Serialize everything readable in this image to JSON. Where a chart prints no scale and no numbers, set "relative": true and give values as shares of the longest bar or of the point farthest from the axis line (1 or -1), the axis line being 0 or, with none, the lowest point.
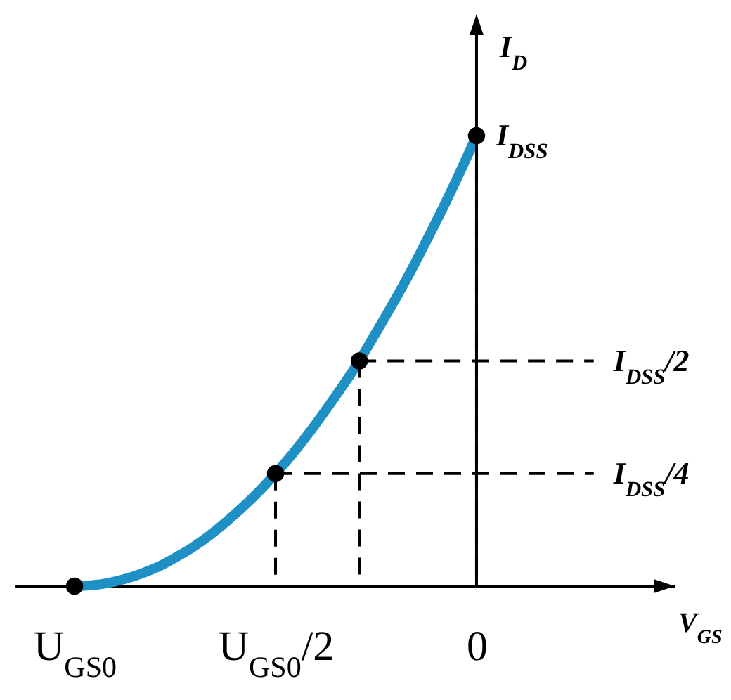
{
  "chart_data": {
    "type": "line",
    "relative": true,
    "xlabel": "V$_{GS}$",
    "ylabel": "I$_{D}$",
    "categories": [
      "U$_{GS0}$",
      null,
      null,
      null,
      null,
      null,
      null,
      null,
      null,
      null,
      null,
      null,
      "U$_{GS0}$/2",
      null,
      null,
      null,
      null,
      null,
      null,
      null,
      null,
      null,
      null,
      null,
      "0",
      null,
      null,
      null,
      null,
      null,
      null,
      null
    ],
    "annotations": [
      {
        "text": "I$_{DSS}$",
        "x": "0",
        "y": 1
      },
      "I$_{DSS}$/2",
      "I$_{DSS}$/4"
    ],
    "series": [
      {
        "type": "line",
        "color": "#000000",
        "line_style": "dashed",
        "values": [
          null,
          null,
          null,
          null,
          null,
          null,
          null,
          null,
          null,
          null,
          null,
          null,
          null,
          null,
          null,
          null,
          null,
          0.5,
          0.5,
          0.5,
          0.5,
          0.5,
          0.5,
          0.5,
          0.5,
          0.5,
          0.5,
          0.5,
          0.5,
          0.5,
          0.5,
          0.5
        ]
      },
      {
        "type": "line",
        "color": "#000000",
        "line_style": "dashed",
        "values": [
          null,
          null,
          null,
          null,
          null,
          null,
          null,
          null,
          null,
          null,
          null,
          null,
          0.25,
          0.25,
          0.25,
          0.25,
          0.25,
          0.25,
          0.25,
          0.25,
          0.25,
          0.25,
          0.25,
          0.25,
          0.25,
          0.25,
          0.25,
          0.25,
          0.25,
          0.25,
          0.25,
          0.25
        ]
      },
      {
        "type": "line",
        "color": "#1e90c4",
        "values": [
          0,
          0.002,
          0.007,
          0.016,
          0.028,
          0.043,
          0.063,
          0.085,
          0.111,
          0.141,
          0.174,
          0.21,
          0.25,
          0.293,
          0.34,
          0.391,
          0.444,
          0.5,
          0.563,
          0.627,
          0.694,
          0.766,
          0.84,
          0.918,
          1,
          null,
          null,
          null,
          null,
          null,
          null,
          null
        ]
      },
      {
        "type": "lollipop",
        "color": "#000000",
        "line_style": "dashed",
        "marker": "circle",
        "values": [
          0,
          null,
          null,
          null,
          null,
          null,
          null,
          null,
          null,
          null,
          null,
          null,
          0.25,
          null,
          null,
          null,
          null,
          0.5,
          null,
          null,
          null,
          null,
          null,
          null,
          1,
          null,
          null,
          null,
          null,
          null,
          null,
          null
        ]
      }
    ]
  }
}
